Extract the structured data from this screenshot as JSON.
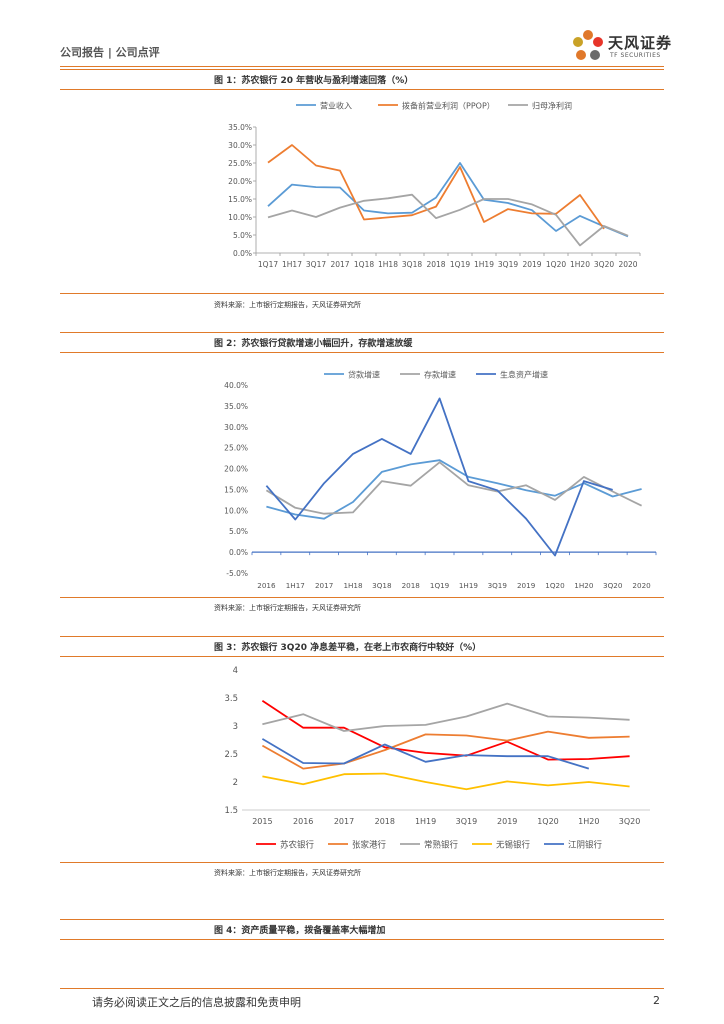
{
  "header": {
    "left": "公司报告 | 公司点评",
    "brand": "天风证券",
    "brand_sub": "TF SECURITIES"
  },
  "figures": [
    {
      "title": "图 1：苏农银行 20 年营收与盈利增速回落（%）",
      "source": "资料来源：上市银行定期报告，天风证券研究所"
    },
    {
      "title": "图 2：苏农银行贷款增速小幅回升，存款增速放缓",
      "source": "资料来源：上市银行定期报告，天风证券研究所"
    },
    {
      "title": "图 3：苏农银行 3Q20 净息差平稳，在老上市农商行中较好（%）",
      "source": "资料来源：上市银行定期报告，天风证券研究所"
    },
    {
      "title": "图 4：资产质量平稳，拨备覆盖率大幅增加",
      "source": ""
    }
  ],
  "footer": {
    "disclaimer": "请务必阅读正文之后的信息披露和免责申明",
    "page": "2"
  },
  "chart_data": [
    {
      "type": "line",
      "x": [
        "1Q17",
        "1H17",
        "3Q17",
        "2017",
        "1Q18",
        "1H18",
        "3Q18",
        "2018",
        "1Q19",
        "1H19",
        "3Q19",
        "2019",
        "1Q20",
        "1H20",
        "3Q20",
        "2020"
      ],
      "y_ticks": [
        "35.0%",
        "30.0%",
        "25.0%",
        "20.0%",
        "15.0%",
        "10.0%",
        "5.0%",
        "0.0%"
      ],
      "ylim": [
        0,
        35
      ],
      "legend_position": "top",
      "series": [
        {
          "name": "营业收入",
          "color": "#5b9bd5",
          "values": [
            13.0,
            19.0,
            18.3,
            18.2,
            11.8,
            11.0,
            11.2,
            15.4,
            25.0,
            14.8,
            13.9,
            11.9,
            6.1,
            10.3,
            7.4,
            4.6
          ]
        },
        {
          "name": "拨备前营业利润（PPOP）",
          "color": "#ed7d31",
          "values": [
            25.1,
            30.0,
            24.3,
            22.9,
            9.3,
            9.9,
            10.5,
            12.9,
            23.9,
            8.6,
            12.2,
            11.0,
            10.9,
            16.1,
            6.7,
            null
          ]
        },
        {
          "name": "归母净利润",
          "color": "#a5a5a5",
          "values": [
            9.9,
            11.8,
            10.0,
            12.6,
            14.5,
            15.2,
            16.2,
            9.7,
            12.0,
            15.0,
            15.0,
            13.5,
            10.6,
            2.1,
            7.5,
            4.8
          ]
        }
      ]
    },
    {
      "type": "line",
      "x": [
        "2016",
        "1H17",
        "2017",
        "1H18",
        "3Q18",
        "2018",
        "1Q19",
        "1H19",
        "3Q19",
        "2019",
        "1Q20",
        "1H20",
        "3Q20",
        "2020"
      ],
      "y_ticks": [
        "40.0%",
        "35.0%",
        "30.0%",
        "25.0%",
        "20.0%",
        "15.0%",
        "10.0%",
        "5.0%",
        "0.0%",
        "-5.0%"
      ],
      "ylim": [
        -5,
        40
      ],
      "legend_position": "top",
      "series": [
        {
          "name": "贷款增速",
          "color": "#5b9bd5",
          "values": [
            10.9,
            9.0,
            8.0,
            12.0,
            19.2,
            21.0,
            22.0,
            18.0,
            16.5,
            14.8,
            13.5,
            16.5,
            13.3,
            15.1
          ]
        },
        {
          "name": "存款增速",
          "color": "#a5a5a5",
          "values": [
            14.8,
            10.6,
            9.2,
            9.5,
            17.0,
            15.9,
            21.5,
            16.0,
            14.5,
            16.0,
            12.5,
            18.0,
            14.5,
            11.1
          ]
        },
        {
          "name": "生息资产增速",
          "color": "#4472c4",
          "values": [
            15.9,
            7.8,
            16.5,
            23.5,
            27.1,
            23.5,
            36.8,
            17.0,
            14.8,
            8.0,
            -0.8,
            17.0,
            14.9,
            null
          ]
        }
      ]
    },
    {
      "type": "line",
      "x": [
        "2015",
        "2016",
        "2017",
        "2018",
        "1H19",
        "3Q19",
        "2019",
        "1Q20",
        "1H20",
        "3Q20"
      ],
      "y_ticks": [
        "4",
        "3.5",
        "3",
        "2.5",
        "2",
        "1.5"
      ],
      "ylim": [
        1.5,
        4
      ],
      "legend_position": "bottom",
      "series": [
        {
          "name": "苏农银行",
          "color": "#ff0000",
          "values": [
            3.45,
            2.97,
            2.97,
            2.62,
            2.52,
            2.47,
            2.72,
            2.4,
            2.41,
            2.46
          ]
        },
        {
          "name": "张家港行",
          "color": "#ed7d31",
          "values": [
            2.65,
            2.24,
            2.33,
            2.57,
            2.85,
            2.83,
            2.74,
            2.9,
            2.79,
            2.81
          ]
        },
        {
          "name": "常熟银行",
          "color": "#a5a5a5",
          "values": [
            3.03,
            3.21,
            2.91,
            3.0,
            3.02,
            3.17,
            3.4,
            3.17,
            3.15,
            3.11
          ]
        },
        {
          "name": "无锡银行",
          "color": "#ffc000",
          "values": [
            2.1,
            1.96,
            2.14,
            2.15,
            2.0,
            1.87,
            2.01,
            1.94,
            2.0,
            1.92
          ]
        },
        {
          "name": "江阴银行",
          "color": "#4472c4",
          "values": [
            2.77,
            2.34,
            2.33,
            2.67,
            2.36,
            2.48,
            2.46,
            2.46,
            2.24,
            null
          ]
        }
      ]
    }
  ]
}
